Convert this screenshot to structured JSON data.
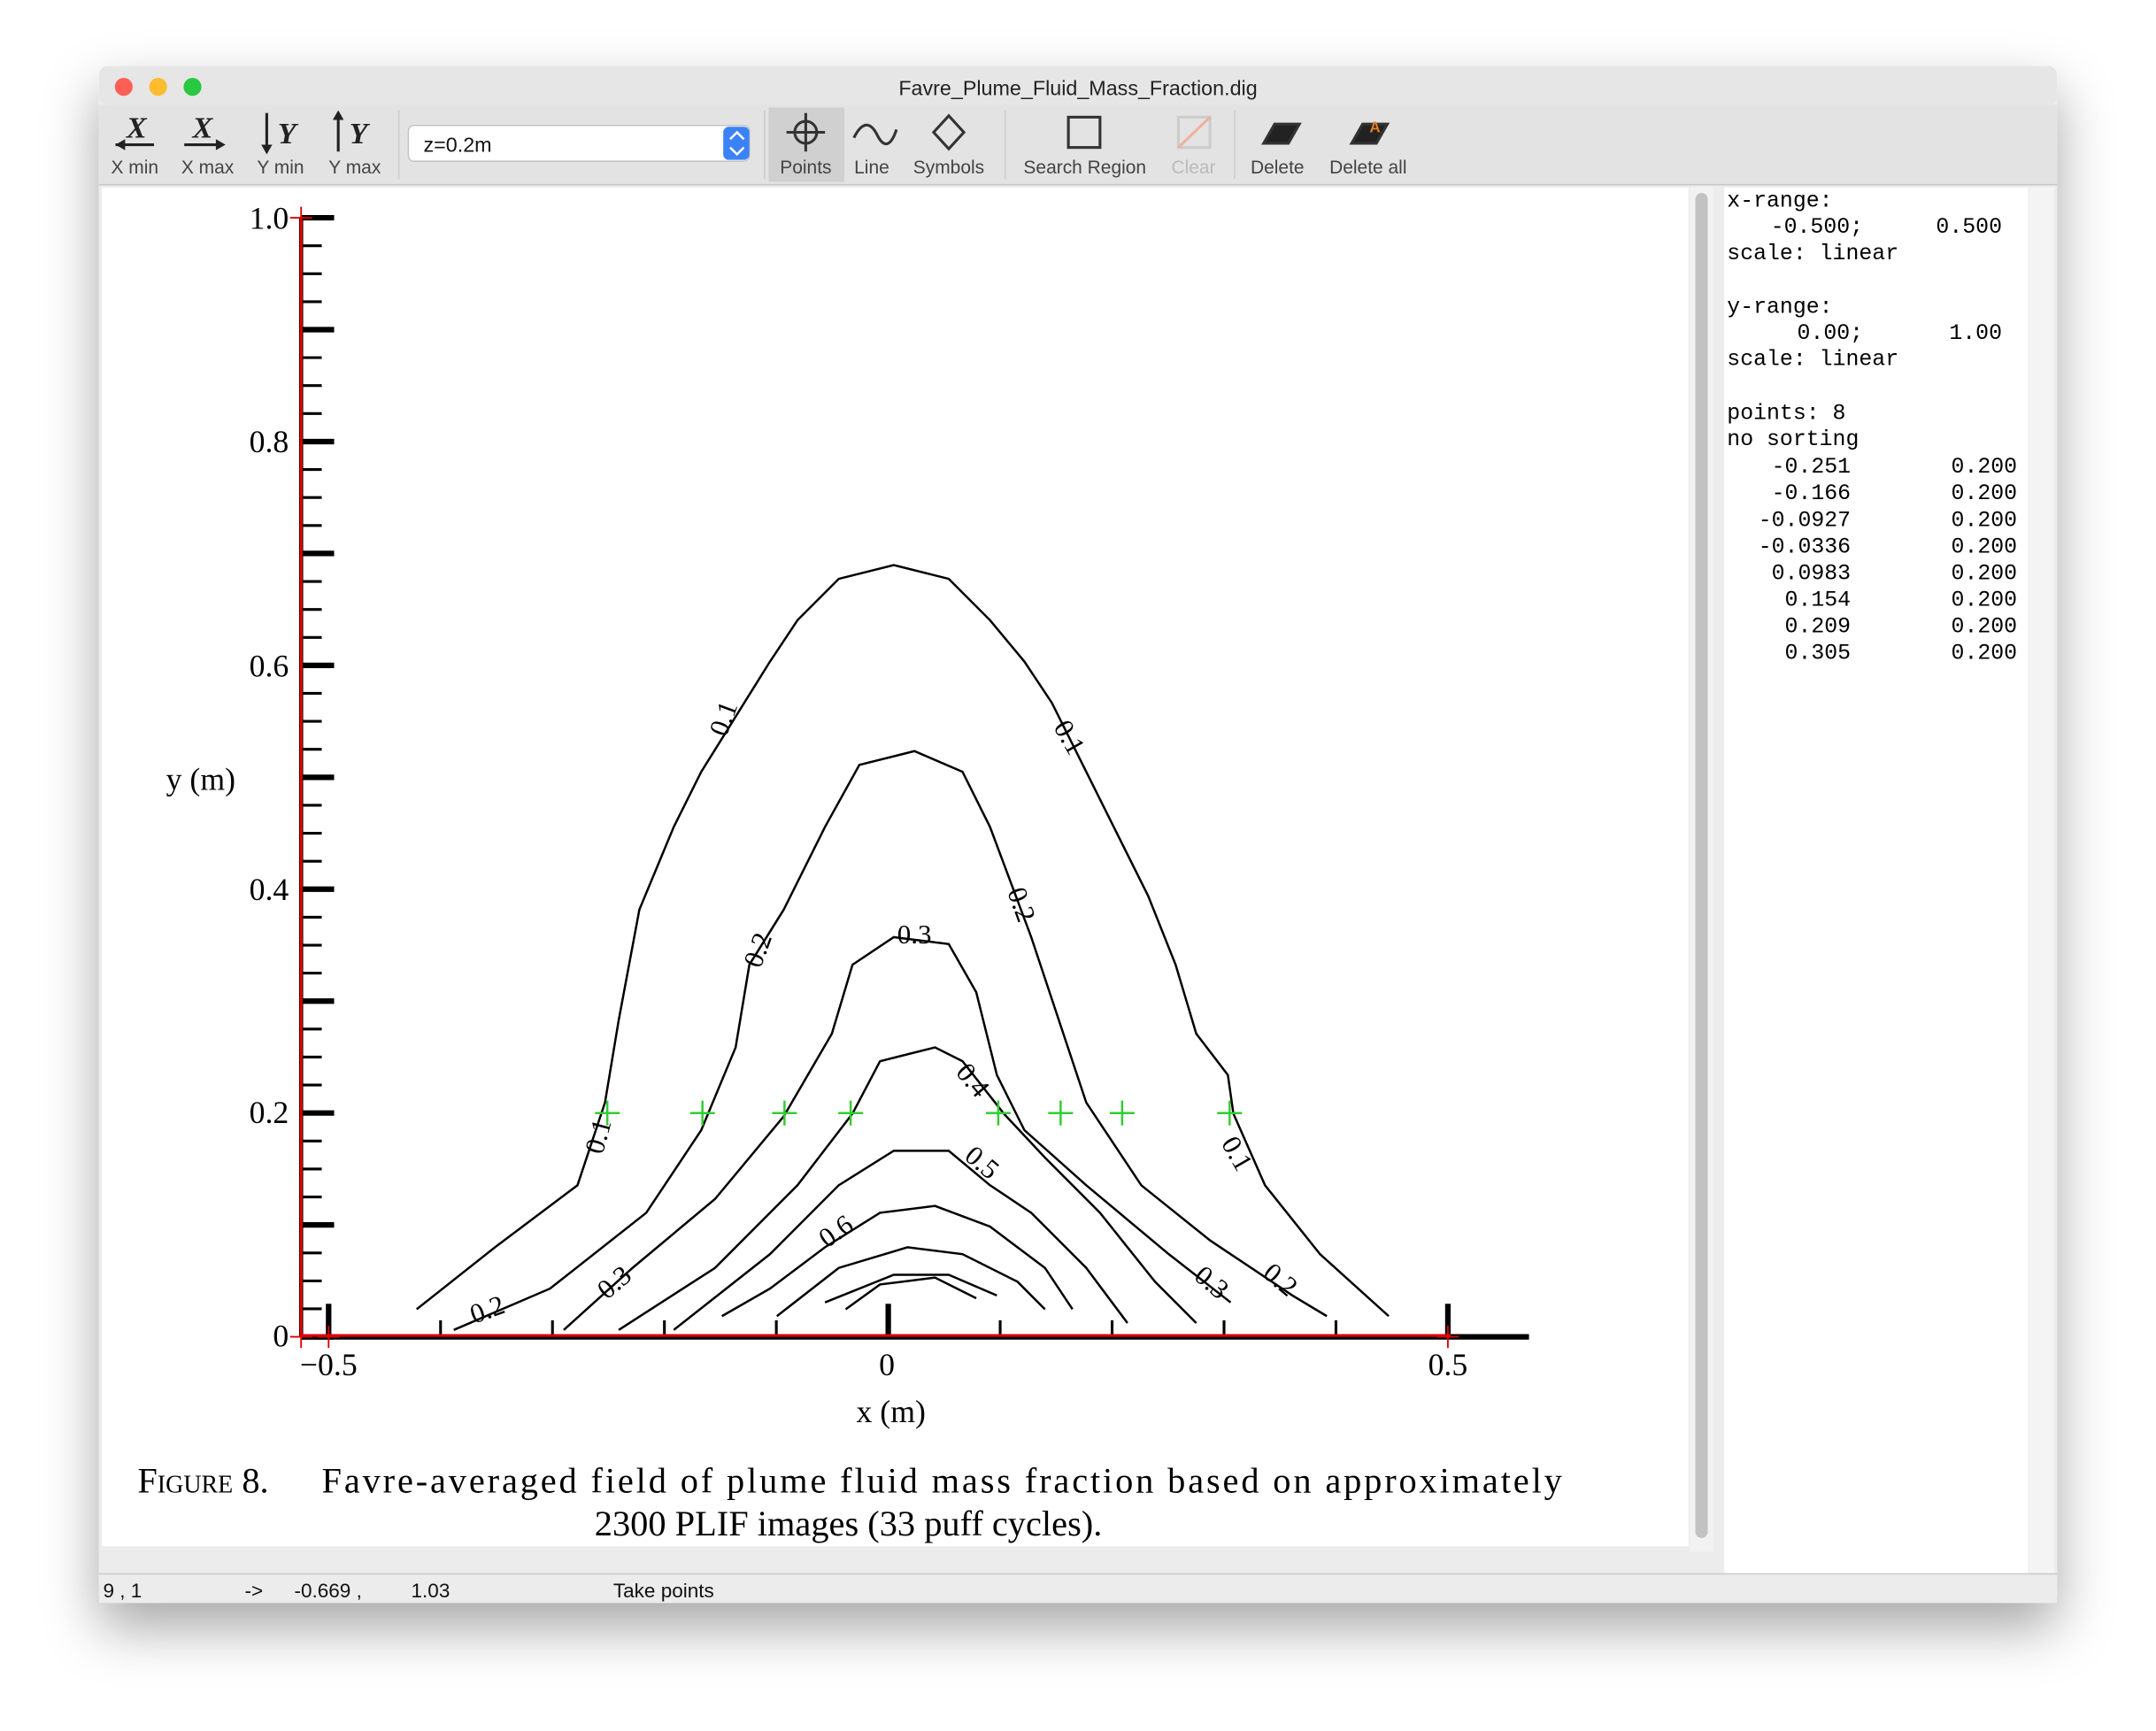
{
  "window": {
    "title": "Favre_Plume_Fluid_Mass_Fraction.dig"
  },
  "toolbar": {
    "axis_buttons": [
      "X min",
      "X max",
      "Y min",
      "Y max"
    ],
    "dataset": "z=0.2m",
    "tools": [
      "Points",
      "Line",
      "Symbols",
      "Search Region",
      "Clear",
      "Delete",
      "Delete all"
    ]
  },
  "figure": {
    "y_label": "y (m)",
    "x_label": "x (m)",
    "yticks": [
      "1.0",
      "0.8",
      "0.6",
      "0.4",
      "0.2",
      "0"
    ],
    "xticks": [
      "−0.5",
      "0",
      "0.5"
    ],
    "contour_labels": [
      "0.1",
      "0.1",
      "0.1",
      "0.1",
      "0.2",
      "0.2",
      "0.2",
      "0.2",
      "0.3",
      "0.3",
      "0.3",
      "0.4",
      "0.5",
      "0.6"
    ],
    "caption": {
      "figure_number": "Figure 8.",
      "line1": "Favre-averaged field of plume fluid mass fraction based on approximately",
      "line2": "2300 PLIF images (33 puff cycles)."
    }
  },
  "side_panel": {
    "x_range_label": "x-range:",
    "x_range": [
      "-0.500;",
      "0.500"
    ],
    "x_scale": "scale: linear",
    "y_range_label": "y-range:",
    "y_range": [
      "0.00;",
      "1.00"
    ],
    "y_scale": "scale: linear",
    "points_count": "points: 8",
    "sorting": "no sorting",
    "points": [
      [
        "-0.251",
        "0.200"
      ],
      [
        "-0.166",
        "0.200"
      ],
      [
        "-0.0927",
        "0.200"
      ],
      [
        "-0.0336",
        "0.200"
      ],
      [
        "0.0983",
        "0.200"
      ],
      [
        "0.154",
        "0.200"
      ],
      [
        "0.209",
        "0.200"
      ],
      [
        "0.305",
        "0.200"
      ]
    ]
  },
  "status_bar": {
    "index": "9 , 1",
    "arrow": "->",
    "x": "-0.669 ,",
    "y": "1.03",
    "mode": "Take points"
  }
}
